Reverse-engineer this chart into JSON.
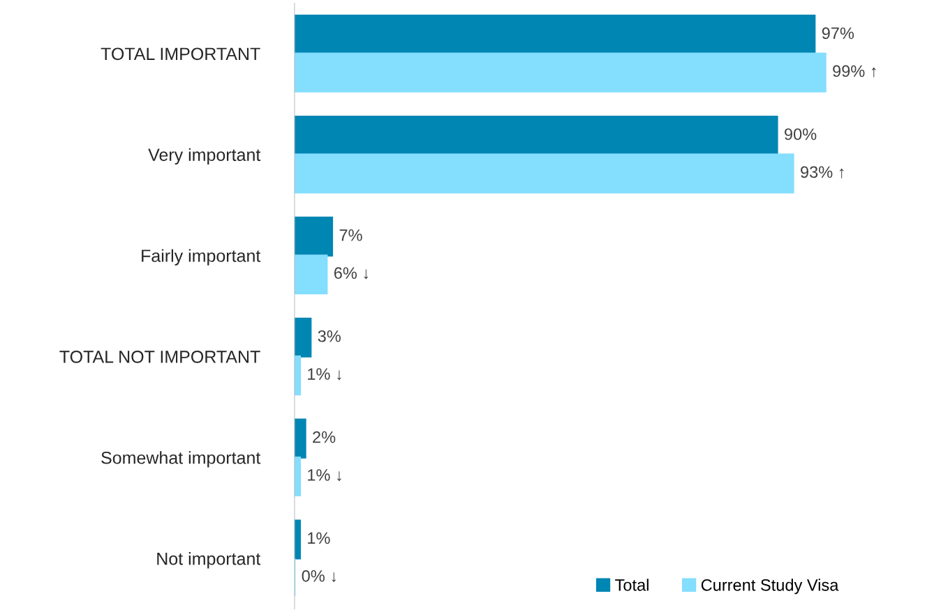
{
  "chart_data": {
    "type": "bar",
    "orientation": "horizontal",
    "categories": [
      "TOTAL IMPORTANT",
      "Very important",
      "Fairly important",
      "TOTAL NOT IMPORTANT",
      "Somewhat important",
      "Not important"
    ],
    "series": [
      {
        "name": "Total",
        "color": "#0086b3",
        "values": [
          97,
          90,
          7,
          3,
          2,
          1
        ],
        "value_labels": [
          "97%",
          "90%",
          "7%",
          "3%",
          "2%",
          "1%"
        ]
      },
      {
        "name": "Current Study Visa",
        "color": "#84defe",
        "values": [
          99,
          93,
          6,
          1,
          1,
          0
        ],
        "value_labels": [
          "99% ↑",
          "93% ↑",
          "6% ↓",
          "1% ↓",
          "1% ↓",
          "0% ↓"
        ]
      }
    ],
    "legend": "bottom right",
    "grid": false,
    "tick_labels": "y"
  }
}
